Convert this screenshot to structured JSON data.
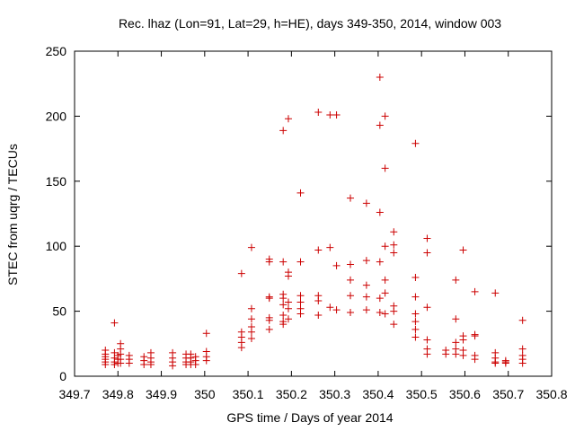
{
  "chart_data": {
    "type": "scatter",
    "title": "Rec. lhaz (Lon=91, Lat=29, h=HE), days 349-350, 2014, window 003",
    "xlabel": "GPS time / Days of year 2014",
    "ylabel": "STEC from uqrg / TECUs",
    "xlim": [
      349.7,
      350.8
    ],
    "ylim": [
      0,
      250
    ],
    "x_ticks": [
      349.7,
      349.8,
      349.9,
      350.0,
      350.1,
      350.2,
      350.3,
      350.4,
      350.5,
      350.6,
      350.7,
      350.8
    ],
    "x_tick_labels": [
      "349.7",
      "349.8",
      "349.9",
      "350",
      "350.1",
      "350.2",
      "350.3",
      "350.4",
      "350.5",
      "350.6",
      "350.7",
      "350.8"
    ],
    "y_ticks": [
      0,
      50,
      100,
      150,
      200,
      250
    ],
    "y_tick_labels": [
      "0",
      "50",
      "100",
      "150",
      "200",
      "250"
    ],
    "grid": false,
    "legend": null,
    "marker": "+",
    "colors": {
      "marker": "#cc0000",
      "axis": "#000000",
      "background": "#ffffff"
    },
    "series": [
      {
        "name": "STEC",
        "points": [
          [
            349.771,
            20
          ],
          [
            349.771,
            17
          ],
          [
            349.771,
            15
          ],
          [
            349.771,
            13
          ],
          [
            349.771,
            11
          ],
          [
            349.771,
            9
          ],
          [
            349.792,
            41
          ],
          [
            349.792,
            18
          ],
          [
            349.792,
            14
          ],
          [
            349.792,
            11
          ],
          [
            349.792,
            9
          ],
          [
            349.8,
            16
          ],
          [
            349.8,
            13
          ],
          [
            349.8,
            10
          ],
          [
            349.806,
            25
          ],
          [
            349.806,
            21
          ],
          [
            349.806,
            17
          ],
          [
            349.806,
            13
          ],
          [
            349.806,
            10
          ],
          [
            349.826,
            16
          ],
          [
            349.826,
            13
          ],
          [
            349.826,
            10
          ],
          [
            349.86,
            15
          ],
          [
            349.86,
            12
          ],
          [
            349.86,
            9
          ],
          [
            349.876,
            18
          ],
          [
            349.876,
            14
          ],
          [
            349.876,
            11
          ],
          [
            349.876,
            9
          ],
          [
            349.926,
            18
          ],
          [
            349.926,
            14
          ],
          [
            349.926,
            11
          ],
          [
            349.926,
            8
          ],
          [
            349.957,
            17
          ],
          [
            349.957,
            14
          ],
          [
            349.957,
            11
          ],
          [
            349.957,
            9
          ],
          [
            349.968,
            17
          ],
          [
            349.968,
            14
          ],
          [
            349.968,
            11
          ],
          [
            349.968,
            9
          ],
          [
            349.979,
            15
          ],
          [
            349.979,
            12
          ],
          [
            349.979,
            9
          ],
          [
            350.004,
            33
          ],
          [
            350.004,
            19
          ],
          [
            350.004,
            15
          ],
          [
            350.004,
            12
          ],
          [
            350.085,
            79
          ],
          [
            350.085,
            34
          ],
          [
            350.085,
            30
          ],
          [
            350.085,
            26
          ],
          [
            350.085,
            22
          ],
          [
            350.108,
            99
          ],
          [
            350.108,
            52
          ],
          [
            350.108,
            44
          ],
          [
            350.108,
            38
          ],
          [
            350.108,
            34
          ],
          [
            350.108,
            29
          ],
          [
            350.149,
            90
          ],
          [
            350.149,
            88
          ],
          [
            350.149,
            61
          ],
          [
            350.149,
            60
          ],
          [
            350.149,
            45
          ],
          [
            350.149,
            43
          ],
          [
            350.149,
            36
          ],
          [
            350.181,
            189
          ],
          [
            350.181,
            88
          ],
          [
            350.181,
            63
          ],
          [
            350.181,
            60
          ],
          [
            350.181,
            55
          ],
          [
            350.181,
            47
          ],
          [
            350.181,
            42
          ],
          [
            350.181,
            40
          ],
          [
            350.193,
            198
          ],
          [
            350.193,
            80
          ],
          [
            350.193,
            77
          ],
          [
            350.193,
            57
          ],
          [
            350.193,
            52
          ],
          [
            350.193,
            44
          ],
          [
            350.221,
            141
          ],
          [
            350.221,
            88
          ],
          [
            350.221,
            62
          ],
          [
            350.221,
            57
          ],
          [
            350.221,
            52
          ],
          [
            350.221,
            48
          ],
          [
            350.262,
            203
          ],
          [
            350.262,
            97
          ],
          [
            350.262,
            62
          ],
          [
            350.262,
            58
          ],
          [
            350.262,
            47
          ],
          [
            350.289,
            201
          ],
          [
            350.289,
            99
          ],
          [
            350.289,
            53
          ],
          [
            350.304,
            201
          ],
          [
            350.304,
            85
          ],
          [
            350.304,
            51
          ],
          [
            350.336,
            137
          ],
          [
            350.336,
            86
          ],
          [
            350.336,
            74
          ],
          [
            350.336,
            62
          ],
          [
            350.336,
            49
          ],
          [
            350.373,
            133
          ],
          [
            350.373,
            89
          ],
          [
            350.373,
            70
          ],
          [
            350.373,
            61
          ],
          [
            350.373,
            51
          ],
          [
            350.404,
            230
          ],
          [
            350.404,
            193
          ],
          [
            350.404,
            126
          ],
          [
            350.404,
            88
          ],
          [
            350.404,
            60
          ],
          [
            350.404,
            49
          ],
          [
            350.416,
            200
          ],
          [
            350.416,
            160
          ],
          [
            350.416,
            100
          ],
          [
            350.416,
            74
          ],
          [
            350.416,
            64
          ],
          [
            350.416,
            48
          ],
          [
            350.436,
            111
          ],
          [
            350.436,
            101
          ],
          [
            350.436,
            95
          ],
          [
            350.436,
            54
          ],
          [
            350.436,
            50
          ],
          [
            350.436,
            40
          ],
          [
            350.486,
            179
          ],
          [
            350.486,
            76
          ],
          [
            350.486,
            61
          ],
          [
            350.486,
            48
          ],
          [
            350.486,
            42
          ],
          [
            350.486,
            36
          ],
          [
            350.486,
            30
          ],
          [
            350.513,
            106
          ],
          [
            350.513,
            95
          ],
          [
            350.513,
            53
          ],
          [
            350.513,
            28
          ],
          [
            350.513,
            21
          ],
          [
            350.513,
            17
          ],
          [
            350.556,
            20
          ],
          [
            350.556,
            17
          ],
          [
            350.579,
            74
          ],
          [
            350.579,
            44
          ],
          [
            350.579,
            26
          ],
          [
            350.579,
            21
          ],
          [
            350.579,
            17
          ],
          [
            350.596,
            97
          ],
          [
            350.596,
            31
          ],
          [
            350.596,
            28
          ],
          [
            350.596,
            20
          ],
          [
            350.596,
            16
          ],
          [
            350.623,
            65
          ],
          [
            350.623,
            32
          ],
          [
            350.623,
            31
          ],
          [
            350.623,
            16
          ],
          [
            350.623,
            13
          ],
          [
            350.67,
            64
          ],
          [
            350.67,
            18
          ],
          [
            350.67,
            14
          ],
          [
            350.67,
            11
          ],
          [
            350.67,
            10
          ],
          [
            350.694,
            12
          ],
          [
            350.694,
            11
          ],
          [
            350.694,
            10
          ],
          [
            350.733,
            43
          ],
          [
            350.733,
            21
          ],
          [
            350.733,
            16
          ],
          [
            350.733,
            13
          ],
          [
            350.733,
            10
          ]
        ]
      }
    ]
  }
}
